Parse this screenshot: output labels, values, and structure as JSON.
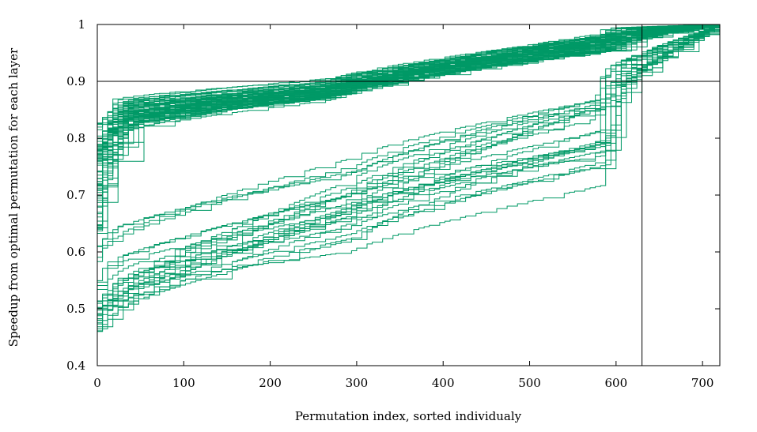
{
  "chart_data": {
    "type": "line",
    "title": "",
    "xlabel": "Permutation index, sorted individualy",
    "ylabel": "Speedup from optimal permutation for each layer",
    "xlim": [
      0,
      720
    ],
    "ylim": [
      0.4,
      1.0
    ],
    "xticks": [
      0,
      100,
      200,
      300,
      400,
      500,
      600,
      700
    ],
    "yticks": [
      0.4,
      0.5,
      0.6,
      0.7,
      0.8,
      0.9,
      1.0
    ],
    "xtick_labels": [
      "0",
      "100",
      "200",
      "300",
      "400",
      "500",
      "600",
      "700"
    ],
    "ytick_labels": [
      "0.4",
      "0.5",
      "0.6",
      "0.7",
      "0.8",
      "0.9",
      "1"
    ],
    "grid": false,
    "legend": "none",
    "line_color": "#009966",
    "reference_lines": [
      {
        "axis": "y",
        "value": 0.9
      },
      {
        "axis": "x",
        "value": 630
      }
    ],
    "series_groups": [
      {
        "count": 70,
        "start_range": [
          0.63,
          0.83
        ],
        "knee_x": [
          575,
          612
        ],
        "knee_y_range": [
          0.955,
          0.985
        ],
        "profile": "upper"
      },
      {
        "count": 4,
        "start_range": [
          0.58,
          0.62
        ],
        "knee_x": [
          580,
          612
        ],
        "knee_y_range": [
          0.86,
          0.88
        ],
        "profile": "middle"
      },
      {
        "count": 22,
        "start_range": [
          0.45,
          0.55
        ],
        "knee_x": [
          570,
          600
        ],
        "knee_y_range": [
          0.71,
          0.86
        ],
        "profile": "lower"
      }
    ],
    "end_value": [
      720,
      1.0
    ]
  }
}
